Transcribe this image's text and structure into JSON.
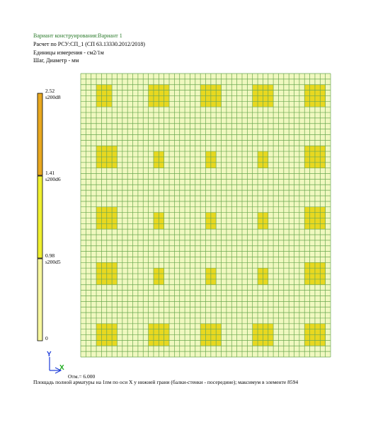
{
  "header": {
    "variant": "Вариант конструирования:Вариант 1",
    "calc": "Расчет по РСУ:СП_1 (СП 63.13330.2012/2018)",
    "units": "Единицы измерения - см2/1м",
    "step": "Шаг, Диаметр - мм"
  },
  "legend": {
    "levels": [
      {
        "value": "2.52",
        "rebar": "s200d8"
      },
      {
        "value": "1.41",
        "rebar": "s200d6"
      },
      {
        "value": "0.98",
        "rebar": "s200d5"
      },
      {
        "value": "0",
        "rebar": ""
      }
    ],
    "colors": [
      "#e8a820",
      "#f0f030",
      "#f8f8a0"
    ]
  },
  "plate": {
    "grid_color": "#6aa84f",
    "background": "#f0f8c0",
    "zone_color": "#e8d820",
    "cols": 48,
    "rows": 51
  },
  "axes": {
    "x_label": "X",
    "y_label": "Y"
  },
  "footer": {
    "z_level": "Отм.= 6.000",
    "caption": "Площадь полной арматуры на 1пм по оси X у нижней грани (балки-стенки - посередине); максимум в элементе 8594"
  }
}
